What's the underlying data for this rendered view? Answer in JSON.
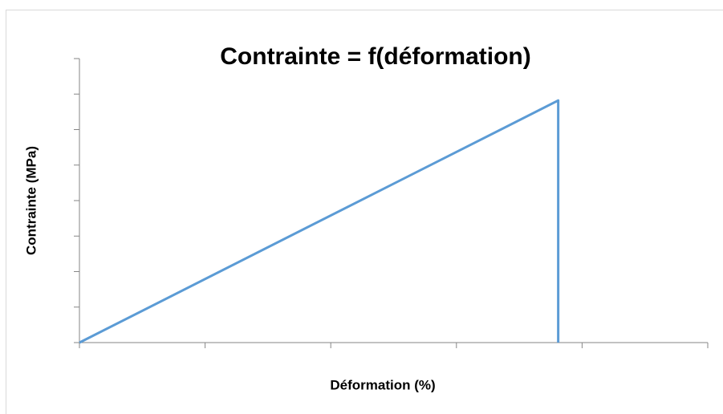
{
  "chart_data": {
    "type": "line",
    "title": "Contrainte = f(déformation)",
    "xlabel": "Déformation (%)",
    "ylabel": "Contrainte (MPa)",
    "x": [
      0,
      3.81,
      3.81
    ],
    "series": [
      {
        "color": "#5b9bd5",
        "values": [
          0,
          6.82,
          0
        ]
      }
    ],
    "xlim": [
      0,
      5
    ],
    "xticks": [
      0,
      1,
      2,
      3,
      4,
      5
    ],
    "ylim": [
      0,
      8
    ],
    "yticks": [
      0,
      1,
      2,
      3,
      4,
      5,
      6,
      7,
      8
    ]
  }
}
